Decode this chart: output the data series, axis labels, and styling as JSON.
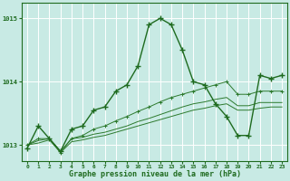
{
  "x": [
    0,
    1,
    2,
    3,
    4,
    5,
    6,
    7,
    8,
    9,
    10,
    11,
    12,
    13,
    14,
    15,
    16,
    17,
    18,
    19,
    20,
    21,
    22,
    23
  ],
  "line_main": [
    1012.95,
    1013.3,
    1013.1,
    1012.9,
    1013.25,
    1013.3,
    1013.55,
    1013.6,
    1013.85,
    1013.95,
    1014.25,
    1014.9,
    1015.0,
    1014.9,
    1014.5,
    1014.0,
    1013.95,
    1013.65,
    1013.45,
    1013.15,
    1013.15,
    1014.1,
    1014.05,
    1014.1
  ],
  "line2": [
    1013.0,
    1013.1,
    1013.1,
    1012.88,
    1013.1,
    1013.15,
    1013.25,
    1013.3,
    1013.38,
    1013.45,
    1013.53,
    1013.6,
    1013.68,
    1013.75,
    1013.8,
    1013.85,
    1013.9,
    1013.95,
    1014.0,
    1013.8,
    1013.8,
    1013.85,
    1013.85,
    1013.85
  ],
  "line3": [
    1013.0,
    1013.07,
    1013.1,
    1012.9,
    1013.1,
    1013.12,
    1013.17,
    1013.2,
    1013.25,
    1013.3,
    1013.37,
    1013.42,
    1013.48,
    1013.54,
    1013.6,
    1013.65,
    1013.68,
    1013.72,
    1013.75,
    1013.62,
    1013.62,
    1013.67,
    1013.67,
    1013.67
  ],
  "line4": [
    1013.0,
    1013.03,
    1013.08,
    1012.88,
    1013.05,
    1013.08,
    1013.12,
    1013.15,
    1013.2,
    1013.25,
    1013.3,
    1013.35,
    1013.4,
    1013.45,
    1013.5,
    1013.55,
    1013.58,
    1013.62,
    1013.65,
    1013.55,
    1013.55,
    1013.58,
    1013.6,
    1013.6
  ],
  "ylim": [
    1012.75,
    1015.25
  ],
  "yticks": [
    1013,
    1014,
    1015
  ],
  "xticks": [
    0,
    1,
    2,
    3,
    4,
    5,
    6,
    7,
    8,
    9,
    10,
    11,
    12,
    13,
    14,
    15,
    16,
    17,
    18,
    19,
    20,
    21,
    22,
    23
  ],
  "xlabel": "Graphe pression niveau de la mer (hPa)",
  "dark_green": "#1f6b1f",
  "medium_green": "#2d7a2d",
  "bg_color": "#c8eae4",
  "grid_color": "#ffffff"
}
